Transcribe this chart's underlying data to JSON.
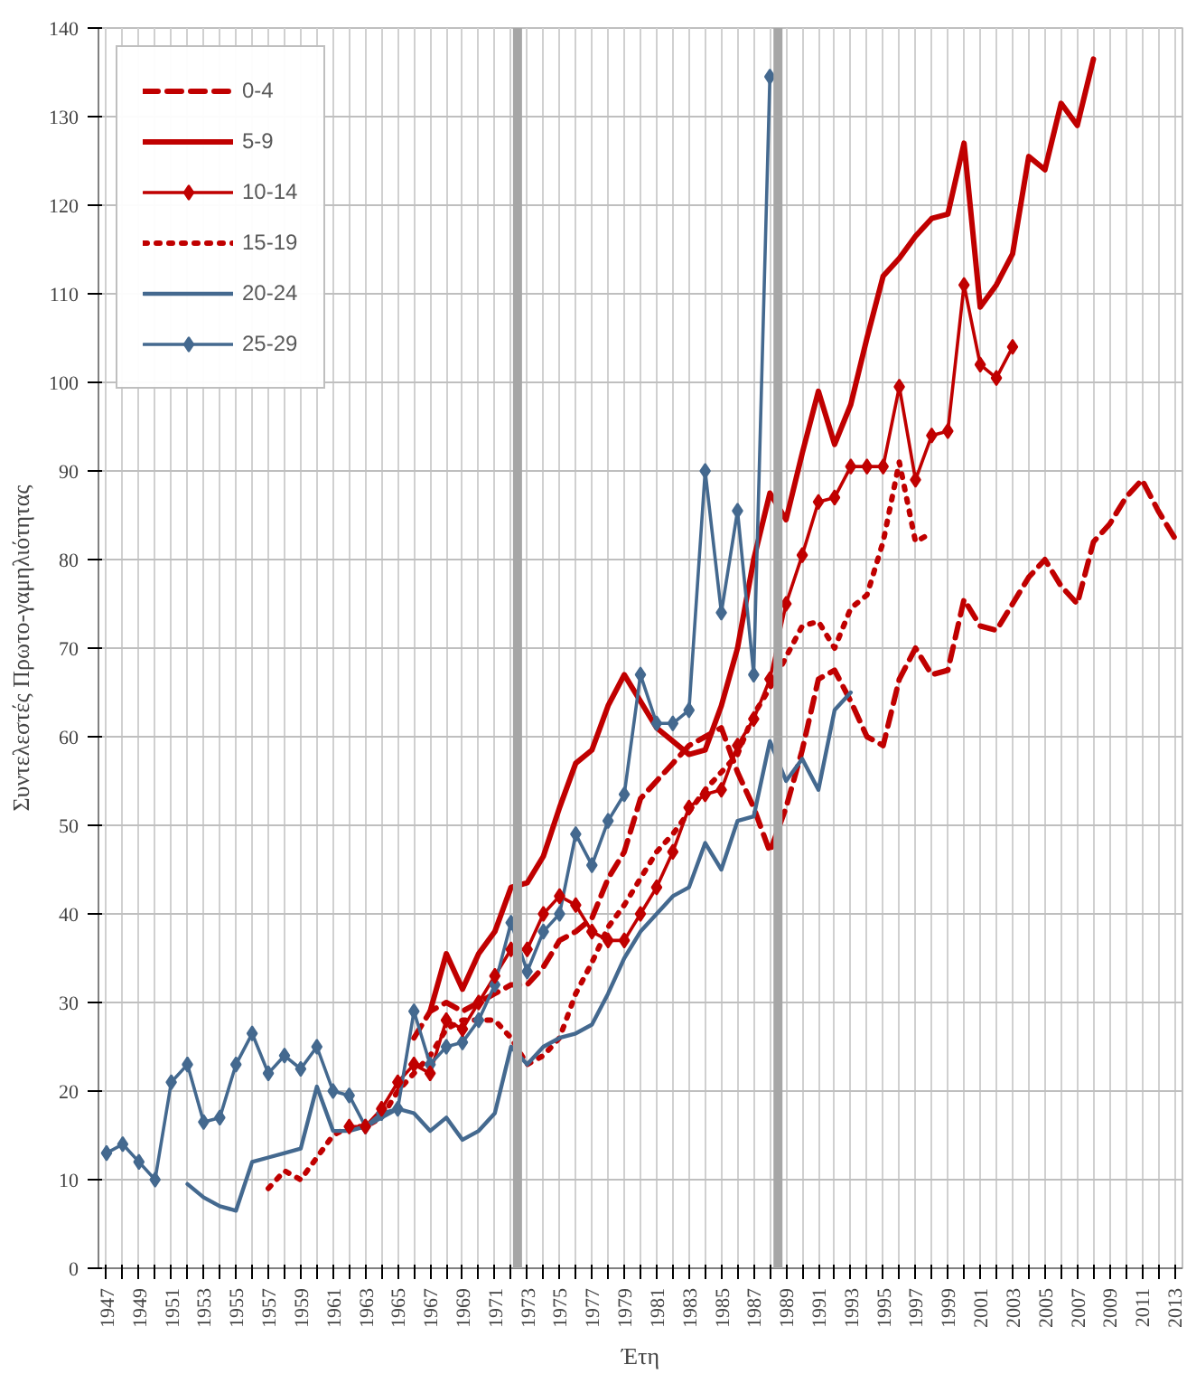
{
  "chart_data": {
    "type": "line",
    "xlabel": "Έτη",
    "ylabel": "Συντελεστές Πρωτο-γαμηλιότητας",
    "xlim": [
      1946.5,
      2013.5
    ],
    "ylim": [
      0,
      140
    ],
    "yticks": [
      0,
      10,
      20,
      30,
      40,
      50,
      60,
      70,
      80,
      90,
      100,
      110,
      120,
      130,
      140
    ],
    "xticks": [
      1947,
      {
        "value": 1948,
        "label": null
      },
      1949,
      {
        "value": 1950,
        "label": null
      },
      1951,
      {
        "value": 1952,
        "label": null
      },
      1953,
      {
        "value": 1954,
        "label": null
      },
      1955,
      {
        "value": 1956,
        "label": null
      },
      1957,
      {
        "value": 1958,
        "label": null
      },
      1959,
      {
        "value": 1960,
        "label": null
      },
      1961,
      {
        "value": 1962,
        "label": null
      },
      1963,
      {
        "value": 1964,
        "label": null
      },
      1965,
      {
        "value": 1966,
        "label": null
      },
      1967,
      {
        "value": 1968,
        "label": null
      },
      1969,
      {
        "value": 1970,
        "label": null
      },
      1971,
      {
        "value": 1972,
        "label": null
      },
      1973,
      {
        "value": 1974,
        "label": null
      },
      1975,
      {
        "value": 1976,
        "label": null
      },
      1977,
      {
        "value": 1978,
        "label": null
      },
      1979,
      {
        "value": 1980,
        "label": null
      },
      1981,
      {
        "value": 1982,
        "label": null
      },
      1983,
      {
        "value": 1984,
        "label": null
      },
      1985,
      {
        "value": 1986,
        "label": null
      },
      1987,
      {
        "value": 1988,
        "label": null
      },
      1989,
      {
        "value": 1990,
        "label": null
      },
      1991,
      {
        "value": 1992,
        "label": null
      },
      1993,
      {
        "value": 1994,
        "label": null
      },
      1995,
      {
        "value": 1996,
        "label": null
      },
      1997,
      {
        "value": 1998,
        "label": null
      },
      1999,
      {
        "value": 2000,
        "label": null
      },
      2001,
      {
        "value": 2002,
        "label": null
      },
      2003,
      {
        "value": 2004,
        "label": null
      },
      2005,
      {
        "value": 2006,
        "label": null
      },
      2007,
      {
        "value": 2008,
        "label": null
      },
      2009,
      {
        "value": 2010,
        "label": null
      },
      2011,
      {
        "value": 2012,
        "label": null
      },
      2013
    ],
    "grid": true,
    "legend": "top left",
    "ref_lines": [
      {
        "axis": "x",
        "value": 1972.4,
        "color": "#a6a6a6"
      },
      {
        "axis": "x",
        "value": 1988.5,
        "color": "#a6a6a6"
      }
    ],
    "series": [
      {
        "name": "0-4",
        "color": "#c00000",
        "line_style": "dashed",
        "marker": "none",
        "x": [
          1966,
          1967,
          1968,
          1969,
          1970,
          1971,
          1972,
          1973,
          1974,
          1975,
          1976,
          1977,
          1978,
          1979,
          1980,
          1981,
          1982,
          1983,
          1984,
          1985,
          1986,
          1987,
          1988,
          1989,
          1990,
          1991,
          1992,
          1993,
          1994,
          1995,
          1996,
          1997,
          1998,
          1999,
          2000,
          2001,
          2002,
          2003,
          2004,
          2005,
          2006,
          2007,
          2008,
          2009,
          2010,
          2011,
          2012,
          2013
        ],
        "values": [
          26,
          29,
          30,
          29,
          30,
          31,
          32,
          32,
          34,
          37,
          38,
          39.5,
          44,
          47,
          53,
          55,
          57,
          59,
          60,
          61,
          56,
          52,
          47,
          52,
          58.5,
          66.5,
          67.5,
          64,
          60,
          59,
          66.5,
          70,
          67,
          67.5,
          75.5,
          72.5,
          72,
          75,
          78,
          80,
          77,
          75,
          82,
          84,
          87,
          89,
          85.5,
          82.5
        ]
      },
      {
        "name": "5-9",
        "color": "#c00000",
        "line_style": "solid",
        "marker": "none",
        "x": [
          1967,
          1968,
          1969,
          1970,
          1971,
          1972,
          1973,
          1974,
          1975,
          1976,
          1977,
          1978,
          1979,
          1980,
          1981,
          1982,
          1983,
          1984,
          1985,
          1986,
          1987,
          1988,
          1989,
          1990,
          1991,
          1992,
          1993,
          1994,
          1995,
          1996,
          1997,
          1998,
          1999,
          2000,
          2001,
          2002,
          2003,
          2004,
          2005,
          2006,
          2007,
          2008
        ],
        "values": [
          29,
          35.5,
          31.5,
          35.5,
          38,
          43,
          43.5,
          46.5,
          52,
          57,
          58.5,
          63.5,
          67,
          64,
          61,
          59.5,
          58,
          58.5,
          63.5,
          70,
          80,
          87.5,
          84.5,
          92,
          99,
          93,
          97.5,
          105,
          112,
          114,
          116.5,
          118.5,
          119,
          127,
          108.5,
          111,
          114.5,
          125.5,
          124,
          131.5,
          129,
          136.5
        ]
      },
      {
        "name": "10-14",
        "color": "#c00000",
        "line_style": "solid",
        "marker": "diamond",
        "x": [
          1962,
          1963,
          1964,
          1965,
          1966,
          1967,
          1968,
          1969,
          1970,
          1971,
          1972,
          1973,
          1974,
          1975,
          1976,
          1977,
          1978,
          1979,
          1980,
          1981,
          1982,
          1983,
          1984,
          1985,
          1986,
          1987,
          1988,
          1989,
          1990,
          1991,
          1992,
          1993,
          1994,
          1995,
          1996,
          1997,
          1998,
          1999,
          2000,
          2001,
          2002,
          2003
        ],
        "values": [
          16,
          16,
          18,
          21,
          23,
          22,
          28,
          27,
          30,
          33,
          36,
          36,
          40,
          42,
          41,
          38,
          37,
          37,
          40,
          43,
          47,
          52,
          53.5,
          54,
          59,
          62,
          66.5,
          75,
          80.5,
          86.5,
          87,
          90.5,
          90.5,
          90.5,
          99.5,
          89,
          94,
          94.5,
          111,
          102,
          100.5,
          104
        ]
      },
      {
        "name": "15-19",
        "color": "#c00000",
        "line_style": "dotted",
        "marker": "none",
        "x": [
          1957,
          1958,
          1959,
          1960,
          1961,
          1962,
          1963,
          1964,
          1965,
          1966,
          1967,
          1968,
          1969,
          1970,
          1971,
          1972,
          1973,
          1974,
          1975,
          1976,
          1977,
          1978,
          1979,
          1980,
          1981,
          1982,
          1983,
          1984,
          1985,
          1986,
          1987,
          1988,
          1989,
          1990,
          1991,
          1992,
          1993,
          1994,
          1995,
          1996,
          1997,
          1998
        ],
        "values": [
          9,
          11,
          10,
          12.5,
          15,
          16,
          16,
          17,
          20,
          22,
          24,
          27,
          28,
          28,
          28,
          26,
          23,
          24,
          26,
          31,
          34.5,
          38.5,
          41,
          44,
          47,
          49,
          51.5,
          54,
          56,
          58,
          62.5,
          65.5,
          69,
          72.5,
          73,
          70,
          74.5,
          76,
          82,
          91,
          82,
          83
        ]
      },
      {
        "name": "20-24",
        "color": "#44698f",
        "line_style": "solid",
        "marker": "none",
        "x": [
          1952,
          1953,
          1954,
          1955,
          1956,
          1957,
          1958,
          1959,
          1960,
          1961,
          1962,
          1963,
          1964,
          1965,
          1966,
          1967,
          1968,
          1969,
          1970,
          1971,
          1972,
          1973,
          1974,
          1975,
          1976,
          1977,
          1978,
          1979,
          1980,
          1981,
          1982,
          1983,
          1984,
          1985,
          1986,
          1987,
          1988,
          1989,
          1990,
          1991,
          1992,
          1993
        ],
        "values": [
          9.5,
          8,
          7,
          6.5,
          12,
          12.5,
          13,
          13.5,
          20.5,
          15.5,
          15.5,
          16,
          17,
          18,
          17.5,
          15.5,
          17,
          14.5,
          15.5,
          17.5,
          25,
          23,
          25,
          26,
          26.5,
          27.5,
          31,
          35,
          38,
          40,
          42,
          43,
          48,
          45,
          50.5,
          51,
          59.5,
          55,
          57.5,
          54,
          63,
          65
        ]
      },
      {
        "name": "25-29",
        "color": "#44698f",
        "line_style": "solid",
        "marker": "diamond",
        "x": [
          1947,
          1948,
          1949,
          1950,
          1951,
          1952,
          1953,
          1954,
          1955,
          1956,
          1957,
          1958,
          1959,
          1960,
          1961,
          1962,
          1963,
          1964,
          1965,
          1966,
          1967,
          1968,
          1969,
          1970,
          1971,
          1972,
          1973,
          1974,
          1975,
          1976,
          1977,
          1978,
          1979,
          1980,
          1981,
          1982,
          1983,
          1984,
          1985,
          1986,
          1987,
          1988
        ],
        "values": [
          13,
          14,
          12,
          10,
          21,
          23,
          16.5,
          17,
          23,
          26.5,
          22,
          24,
          22.5,
          25,
          20,
          19.5,
          16,
          17.5,
          18,
          29,
          23,
          25,
          25.5,
          28,
          32,
          39,
          33.5,
          38,
          40,
          49,
          45.5,
          50.5,
          53.5,
          67,
          61.5,
          61.5,
          63,
          90,
          74,
          85.5,
          67,
          134.5
        ]
      }
    ]
  }
}
